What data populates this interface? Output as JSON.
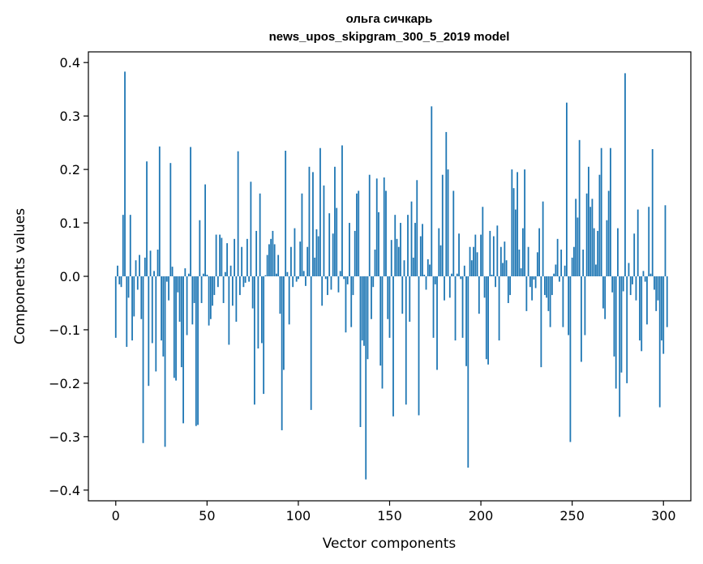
{
  "chart_data": {
    "type": "bar",
    "title_line1": "ольга сичкарь",
    "title_line2": "news_upos_skipgram_300_5_2019 model",
    "xlabel": "Vector components",
    "ylabel": "Components values",
    "xlim": [
      -15,
      315
    ],
    "ylim": [
      -0.42,
      0.42
    ],
    "xticks": [
      0,
      50,
      100,
      150,
      200,
      250,
      300
    ],
    "xtick_labels": [
      "0",
      "50",
      "100",
      "150",
      "200",
      "250",
      "300"
    ],
    "yticks": [
      0.4,
      0.3,
      0.2,
      0.1,
      0.0,
      -0.1,
      -0.2,
      -0.3,
      -0.4
    ],
    "ytick_labels": [
      "0.4",
      "0.3",
      "0.2",
      "0.1",
      "0.0",
      "−0.1",
      "−0.2",
      "−0.3",
      "−0.4"
    ],
    "bar_color": "#1f77b4",
    "values": [
      -0.115,
      0.02,
      -0.015,
      -0.02,
      0.115,
      0.383,
      -0.132,
      -0.04,
      0.115,
      -0.12,
      -0.075,
      0.03,
      -0.025,
      0.04,
      -0.08,
      -0.312,
      0.035,
      0.215,
      -0.205,
      0.048,
      -0.125,
      0.01,
      -0.178,
      0.05,
      0.243,
      -0.12,
      -0.15,
      -0.319,
      -0.01,
      -0.045,
      0.212,
      0.018,
      -0.19,
      -0.195,
      -0.03,
      -0.085,
      -0.17,
      -0.275,
      0.015,
      -0.11,
      0.005,
      0.242,
      -0.09,
      -0.05,
      -0.28,
      -0.278,
      0.105,
      -0.05,
      0.005,
      0.172,
      0.003,
      -0.092,
      -0.08,
      -0.055,
      -0.035,
      0.078,
      -0.02,
      0.078,
      0.072,
      -0.05,
      0.008,
      0.062,
      -0.128,
      0.02,
      -0.055,
      0.07,
      -0.085,
      0.234,
      -0.035,
      0.055,
      -0.02,
      -0.012,
      0.07,
      -0.01,
      0.177,
      -0.06,
      -0.24,
      0.085,
      -0.135,
      0.155,
      -0.125,
      -0.22,
      0.002,
      0.04,
      0.06,
      0.07,
      0.085,
      0.06,
      0.005,
      0.04,
      -0.07,
      -0.288,
      -0.175,
      0.235,
      0.008,
      -0.09,
      0.055,
      -0.02,
      0.09,
      -0.01,
      -0.005,
      0.065,
      0.155,
      0.01,
      -0.018,
      0.055,
      0.205,
      -0.25,
      0.195,
      0.035,
      0.088,
      0.075,
      0.24,
      -0.055,
      0.17,
      -0.005,
      -0.035,
      0.118,
      -0.025,
      0.08,
      0.205,
      0.128,
      -0.03,
      0.01,
      0.245,
      -0.005,
      -0.105,
      -0.015,
      0.1,
      -0.095,
      -0.035,
      0.085,
      0.155,
      0.16,
      -0.282,
      -0.12,
      -0.13,
      -0.38,
      -0.155,
      0.19,
      -0.08,
      -0.02,
      0.05,
      0.183,
      0.12,
      -0.167,
      -0.21,
      0.185,
      0.16,
      -0.08,
      -0.115,
      0.068,
      -0.262,
      0.115,
      0.07,
      0.055,
      0.1,
      -0.07,
      0.03,
      -0.24,
      0.115,
      -0.085,
      0.14,
      0.035,
      0.1,
      0.18,
      -0.26,
      0.075,
      0.098,
      0.003,
      -0.025,
      0.032,
      0.022,
      0.318,
      -0.115,
      -0.015,
      -0.175,
      0.09,
      0.058,
      0.19,
      -0.045,
      0.27,
      0.2,
      -0.04,
      0.005,
      0.16,
      -0.12,
      0.005,
      0.08,
      -0.005,
      -0.115,
      0.02,
      -0.168,
      -0.358,
      0.055,
      0.03,
      0.055,
      0.078,
      0.045,
      -0.07,
      0.078,
      0.13,
      -0.04,
      -0.155,
      -0.165,
      0.085,
      0.003,
      0.075,
      -0.02,
      0.095,
      -0.12,
      0.055,
      0.025,
      0.065,
      0.03,
      -0.05,
      -0.035,
      0.2,
      0.165,
      0.125,
      0.195,
      0.05,
      0.015,
      0.09,
      0.2,
      -0.065,
      0.055,
      -0.02,
      -0.045,
      -0.006,
      -0.022,
      0.045,
      0.09,
      -0.17,
      0.14,
      -0.035,
      -0.04,
      -0.065,
      -0.095,
      -0.035,
      0.005,
      0.022,
      0.07,
      -0.01,
      0.05,
      -0.095,
      0.02,
      0.325,
      -0.11,
      -0.31,
      0.035,
      0.055,
      0.145,
      0.11,
      0.255,
      -0.16,
      0.05,
      -0.11,
      0.155,
      0.205,
      0.13,
      0.145,
      0.09,
      0.022,
      0.085,
      0.19,
      0.24,
      -0.06,
      -0.08,
      0.105,
      0.16,
      0.24,
      -0.03,
      -0.15,
      -0.21,
      0.09,
      -0.263,
      -0.18,
      -0.028,
      0.38,
      -0.2,
      0.025,
      -0.035,
      -0.015,
      0.08,
      -0.045,
      0.125,
      -0.12,
      -0.14,
      0.01,
      -0.01,
      -0.09,
      0.13,
      0.005,
      0.238,
      -0.025,
      -0.065,
      -0.045,
      -0.245,
      -0.12,
      -0.145,
      0.133,
      -0.095
    ]
  }
}
